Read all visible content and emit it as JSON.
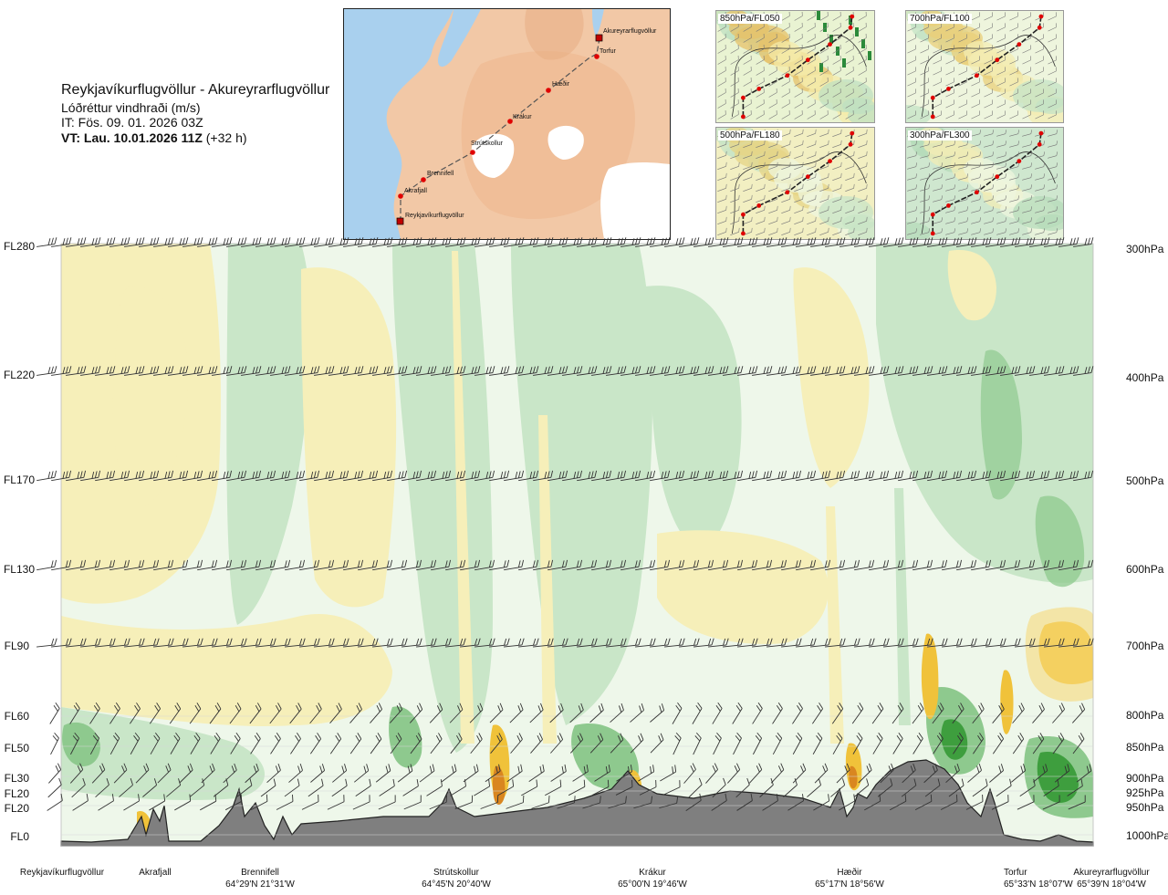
{
  "header": {
    "route_title": "Reykjavíkurflugvöllur - Akureyrarflugvöllur",
    "variable": "Lóðréttur vindhraði (m/s)",
    "issue_time": "IT: Fös. 09. 01. 2026 03Z",
    "valid_time_bold": "VT: Lau. 10.01.2026 11Z",
    "valid_time_offset": "(+32 h)"
  },
  "route_map": {
    "points": [
      {
        "name": "Reykjavíkurflugvöllur",
        "kind": "airport"
      },
      {
        "name": "Akrafjall",
        "kind": "waypoint"
      },
      {
        "name": "Brennifell",
        "kind": "waypoint"
      },
      {
        "name": "Strútskollur",
        "kind": "waypoint"
      },
      {
        "name": "Krákur",
        "kind": "waypoint"
      },
      {
        "name": "Hæðir",
        "kind": "waypoint"
      },
      {
        "name": "Torfur",
        "kind": "waypoint"
      },
      {
        "name": "Akureyrarflugvöllur",
        "kind": "airport"
      }
    ],
    "colors": {
      "sea": "#a7cfee",
      "land": "#f2c7a4",
      "glacier": "#ffffff",
      "route": "#555555",
      "point": "#d40000"
    }
  },
  "insets": [
    {
      "label": "850hPa/FL050"
    },
    {
      "label": "700hPa/FL100"
    },
    {
      "label": "500hPa/FL180"
    },
    {
      "label": "300hPa/FL300"
    }
  ],
  "cross_section": {
    "left_axis_labels": [
      "FL280",
      "FL220",
      "FL170",
      "FL130",
      "FL90",
      "FL60",
      "FL50",
      "FL30",
      "FL20",
      "FL20",
      "FL0"
    ],
    "right_axis_labels": [
      "300hPa",
      "400hPa",
      "500hPa",
      "600hPa",
      "700hPa",
      "800hPa",
      "850hPa",
      "900hPa",
      "925hPa",
      "950hPa",
      "1000hPa"
    ],
    "colors": {
      "strong_descent": "#3e9e3e",
      "descent": "#8ec98e",
      "weak_descent": "#c9e6c8",
      "neutral": "#eef7ea",
      "weak_ascent": "#f6efb9",
      "ascent": "#f0c23a",
      "strong_ascent": "#d98620",
      "terrain": "#7f7f7f"
    }
  },
  "bottom_labels": [
    {
      "name": "Reykjavíkurflugvöllur",
      "coords": ""
    },
    {
      "name": "Akrafjall",
      "coords": ""
    },
    {
      "name": "Brennifell",
      "coords": "64°29'N 21°31'W"
    },
    {
      "name": "Strútskollur",
      "coords": "64°45'N 20°40'W"
    },
    {
      "name": "Krákur",
      "coords": "65°00'N 19°46'W"
    },
    {
      "name": "Hæðir",
      "coords": "65°17'N 18°56'W"
    },
    {
      "name": "Torfur",
      "coords": "65°33'N 18°07'W"
    },
    {
      "name": "Akureyrarflugvöllur",
      "coords": "65°39'N 18°04'W"
    }
  ]
}
